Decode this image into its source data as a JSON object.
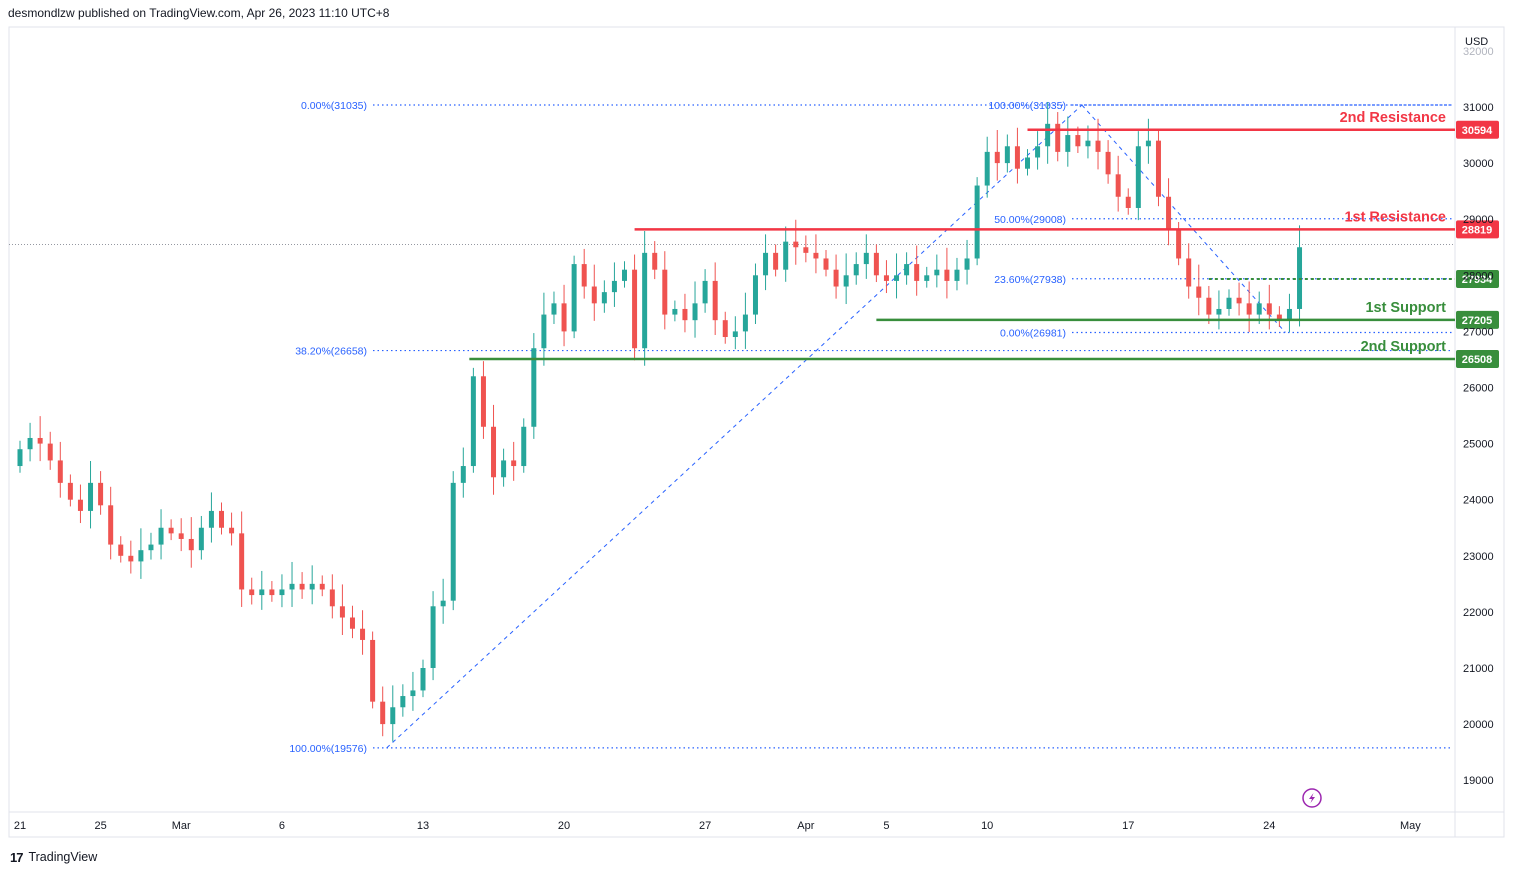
{
  "header": {
    "text": "desmondlzw published on TradingView.com, Apr 26, 2023 11:10 UTC+8"
  },
  "footer": {
    "brand": "TradingView",
    "logo": "tv-logo-icon"
  },
  "chart_data": {
    "type": "candlestick",
    "currency_label": "USD",
    "y_ticks": [
      19000,
      20000,
      21000,
      22000,
      23000,
      24000,
      25000,
      26000,
      27000,
      28000,
      29000,
      30000,
      31000,
      32000
    ],
    "ylim": [
      18500,
      32200
    ],
    "x_ticks": [
      {
        "label": "21",
        "day": 0
      },
      {
        "label": "25",
        "day": 4
      },
      {
        "label": "Mar",
        "day": 8
      },
      {
        "label": "6",
        "day": 13
      },
      {
        "label": "13",
        "day": 20
      },
      {
        "label": "20",
        "day": 27
      },
      {
        "label": "27",
        "day": 34
      },
      {
        "label": "Apr",
        "day": 39
      },
      {
        "label": "5",
        "day": 43
      },
      {
        "label": "10",
        "day": 48
      },
      {
        "label": "17",
        "day": 55
      },
      {
        "label": "24",
        "day": 62
      },
      {
        "label": "May",
        "day": 69
      }
    ],
    "last_price_line": 28550,
    "levels": [
      {
        "label": "2nd Resistance",
        "value": 30594,
        "tag": "30594",
        "color": "#f23645",
        "from_day": 50.0
      },
      {
        "label": "1st Resistance",
        "value": 28819,
        "tag": "28819",
        "color": "#f23645",
        "from_day": 30.5
      },
      {
        "label": "1st Support",
        "value": 27205,
        "tag": "27205",
        "color": "#388e3c",
        "from_day": 42.5
      },
      {
        "label": "2nd Support",
        "value": 26508,
        "tag": "26508",
        "color": "#388e3c",
        "from_day": 22.3
      }
    ],
    "extra_tags": [
      {
        "value": 27934,
        "tag": "27934",
        "color": "#388e3c"
      }
    ],
    "fib_upswing": {
      "from": {
        "day": 18.2,
        "price": 19576
      },
      "to": {
        "day": 52.7,
        "price": 31035
      },
      "labels": [
        {
          "text": "0.00%(31035)",
          "value": 31035
        },
        {
          "text": "38.20%(26658)",
          "value": 26658
        },
        {
          "text": "100.00%(19576)",
          "value": 19576
        }
      ]
    },
    "fib_downswing": {
      "from": {
        "day": 52.7,
        "price": 31035
      },
      "to": {
        "day": 62.8,
        "price": 26981
      },
      "labels": [
        {
          "text": "100.00%(31035)",
          "value": 31035
        },
        {
          "text": "50.00%(29008)",
          "value": 29008
        },
        {
          "text": "23.60%(27938)",
          "value": 27938
        },
        {
          "text": "0.00%(26981)",
          "value": 26981
        }
      ]
    },
    "candles": [
      [
        0,
        24600,
        24900
      ],
      [
        0.5,
        24900,
        25100
      ],
      [
        1,
        25100,
        25000
      ],
      [
        1.5,
        25000,
        24700
      ],
      [
        2,
        24700,
        24300
      ],
      [
        2.5,
        24300,
        24000
      ],
      [
        3,
        24000,
        23800
      ],
      [
        3.5,
        23800,
        24300
      ],
      [
        4,
        24300,
        23900
      ],
      [
        4.5,
        23900,
        23200
      ],
      [
        5,
        23200,
        23000
      ],
      [
        5.5,
        23000,
        22900
      ],
      [
        6,
        22900,
        23100
      ],
      [
        6.5,
        23100,
        23200
      ],
      [
        7,
        23200,
        23500
      ],
      [
        7.5,
        23500,
        23400
      ],
      [
        8,
        23400,
        23300
      ],
      [
        8.5,
        23300,
        23100
      ],
      [
        9,
        23100,
        23500
      ],
      [
        9.5,
        23500,
        23800
      ],
      [
        10,
        23800,
        23500
      ],
      [
        10.5,
        23500,
        23400
      ],
      [
        11,
        23400,
        22400
      ],
      [
        11.5,
        22400,
        22300
      ],
      [
        12,
        22300,
        22400
      ],
      [
        12.5,
        22400,
        22300
      ],
      [
        13,
        22300,
        22400
      ],
      [
        13.5,
        22400,
        22500
      ],
      [
        14,
        22500,
        22400
      ],
      [
        14.5,
        22400,
        22500
      ],
      [
        15,
        22500,
        22400
      ],
      [
        15.5,
        22400,
        22100
      ],
      [
        16,
        22100,
        21900
      ],
      [
        16.5,
        21900,
        21700
      ],
      [
        17,
        21700,
        21500
      ],
      [
        17.5,
        21500,
        20400
      ],
      [
        18,
        20400,
        20000
      ],
      [
        18.5,
        20000,
        20300
      ],
      [
        19,
        20300,
        20500
      ],
      [
        19.5,
        20500,
        20600
      ],
      [
        20,
        20600,
        21000
      ],
      [
        20.5,
        21000,
        22100
      ],
      [
        21,
        22100,
        22200
      ],
      [
        21.5,
        22200,
        24300
      ],
      [
        22,
        24300,
        24600
      ],
      [
        22.5,
        24600,
        26200
      ],
      [
        23,
        26200,
        25300
      ],
      [
        23.5,
        25300,
        24400
      ],
      [
        24,
        24400,
        24700
      ],
      [
        24.5,
        24700,
        24600
      ],
      [
        25,
        24600,
        25300
      ],
      [
        25.5,
        25300,
        26700
      ],
      [
        26,
        26700,
        27300
      ],
      [
        26.5,
        27300,
        27500
      ],
      [
        27,
        27500,
        27000
      ],
      [
        27.5,
        27000,
        28200
      ],
      [
        28,
        28200,
        27800
      ],
      [
        28.5,
        27800,
        27500
      ],
      [
        29,
        27500,
        27700
      ],
      [
        29.5,
        27700,
        27900
      ],
      [
        30,
        27900,
        28100
      ],
      [
        30.5,
        28100,
        26700
      ],
      [
        31,
        26700,
        28400
      ],
      [
        31.5,
        28400,
        28100
      ],
      [
        32,
        28100,
        27300
      ],
      [
        32.5,
        27300,
        27400
      ],
      [
        33,
        27400,
        27200
      ],
      [
        33.5,
        27200,
        27500
      ],
      [
        34,
        27500,
        27900
      ],
      [
        34.5,
        27900,
        27200
      ],
      [
        35,
        27200,
        26900
      ],
      [
        35.5,
        26900,
        27000
      ],
      [
        36,
        27000,
        27300
      ],
      [
        36.5,
        27300,
        28000
      ],
      [
        37,
        28000,
        28400
      ],
      [
        37.5,
        28400,
        28100
      ],
      [
        38,
        28100,
        28600
      ],
      [
        38.5,
        28600,
        28500
      ],
      [
        39,
        28500,
        28400
      ],
      [
        39.5,
        28400,
        28300
      ],
      [
        40,
        28300,
        28100
      ],
      [
        40.5,
        28100,
        27800
      ],
      [
        41,
        27800,
        28000
      ],
      [
        41.5,
        28000,
        28200
      ],
      [
        42,
        28200,
        28400
      ],
      [
        42.5,
        28400,
        28000
      ],
      [
        43,
        28000,
        27900
      ],
      [
        43.5,
        27900,
        28000
      ],
      [
        44,
        28000,
        28200
      ],
      [
        44.5,
        28200,
        27900
      ],
      [
        45,
        27900,
        28000
      ],
      [
        45.5,
        28000,
        28100
      ],
      [
        46,
        28100,
        27900
      ],
      [
        46.5,
        27900,
        28100
      ],
      [
        47,
        28100,
        28300
      ],
      [
        47.5,
        28300,
        29600
      ],
      [
        48,
        29600,
        30200
      ],
      [
        48.5,
        30200,
        30000
      ],
      [
        49,
        30000,
        30300
      ],
      [
        49.5,
        30300,
        29900
      ],
      [
        50,
        29900,
        30100
      ],
      [
        50.5,
        30100,
        30300
      ],
      [
        51,
        30300,
        30700
      ],
      [
        51.5,
        30700,
        30200
      ],
      [
        52,
        30200,
        30500
      ],
      [
        52.5,
        30500,
        30300
      ],
      [
        53,
        30300,
        30400
      ],
      [
        53.5,
        30400,
        30200
      ],
      [
        54,
        30200,
        29800
      ],
      [
        54.5,
        29800,
        29400
      ],
      [
        55,
        29400,
        29200
      ],
      [
        55.5,
        29200,
        30300
      ],
      [
        56,
        30300,
        30400
      ],
      [
        56.5,
        30400,
        29400
      ],
      [
        57,
        29400,
        28800
      ],
      [
        57.5,
        28800,
        28300
      ],
      [
        58,
        28300,
        27800
      ],
      [
        58.5,
        27800,
        27600
      ],
      [
        59,
        27600,
        27300
      ],
      [
        59.5,
        27300,
        27400
      ],
      [
        60,
        27400,
        27600
      ],
      [
        60.5,
        27600,
        27500
      ],
      [
        61,
        27500,
        27300
      ],
      [
        61.5,
        27300,
        27500
      ],
      [
        62,
        27500,
        27300
      ],
      [
        62.5,
        27300,
        27200
      ],
      [
        63,
        27200,
        27400
      ],
      [
        63.5,
        27400,
        28500
      ]
    ]
  }
}
